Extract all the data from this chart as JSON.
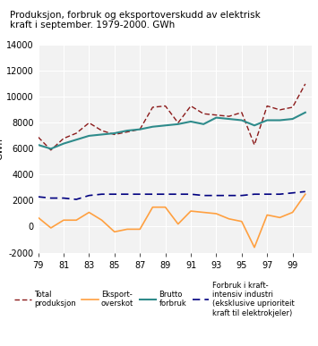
{
  "years": [
    79,
    80,
    81,
    82,
    83,
    84,
    85,
    86,
    87,
    88,
    89,
    90,
    91,
    92,
    93,
    94,
    95,
    96,
    97,
    98,
    99,
    100
  ],
  "total_produksjon": [
    6900,
    5900,
    6800,
    7200,
    8000,
    7400,
    7100,
    7300,
    7500,
    9200,
    9300,
    8000,
    9300,
    8700,
    8600,
    8500,
    8800,
    6300,
    9300,
    9000,
    9200,
    11000
  ],
  "eksport_overskot": [
    700,
    -100,
    500,
    500,
    1100,
    500,
    -400,
    -200,
    -200,
    1500,
    1500,
    200,
    1200,
    1100,
    1000,
    600,
    400,
    -1600,
    900,
    700,
    1100,
    2500
  ],
  "brutto_forbruk": [
    6300,
    6000,
    6400,
    6700,
    7000,
    7100,
    7200,
    7400,
    7500,
    7700,
    7800,
    7900,
    8100,
    7900,
    8400,
    8300,
    8200,
    7800,
    8200,
    8200,
    8300,
    8800
  ],
  "kraft_intensiv": [
    2300,
    2200,
    2200,
    2100,
    2400,
    2500,
    2500,
    2500,
    2500,
    2500,
    2500,
    2500,
    2500,
    2400,
    2400,
    2400,
    2400,
    2500,
    2500,
    2500,
    2600,
    2700
  ],
  "title_line1": "Produksjon, forbruk og eksportoverskudd av elektrisk",
  "title_line2": "kraft i september. 1979-2000. GWh",
  "ylabel": "GWh",
  "ylim": [
    -2000,
    14000
  ],
  "yticks": [
    -2000,
    0,
    2000,
    4000,
    6000,
    8000,
    10000,
    12000,
    14000
  ],
  "xticks": [
    79,
    81,
    83,
    85,
    87,
    89,
    91,
    93,
    95,
    97,
    99
  ],
  "color_produksjon": "#8B1A1A",
  "color_eksport": "#FFA040",
  "color_brutto": "#2E8B8B",
  "color_kraft": "#000080",
  "bg_color": "#f2f2f2",
  "legend_labels": [
    "Total\nproduksjon",
    "Eksport-\noverskot",
    "Brutto\nforbruk",
    "Forbruk i kraft-\nintensiv industri\n(eksklusive uprioriteit\nkraft til elektrokjeler)"
  ]
}
